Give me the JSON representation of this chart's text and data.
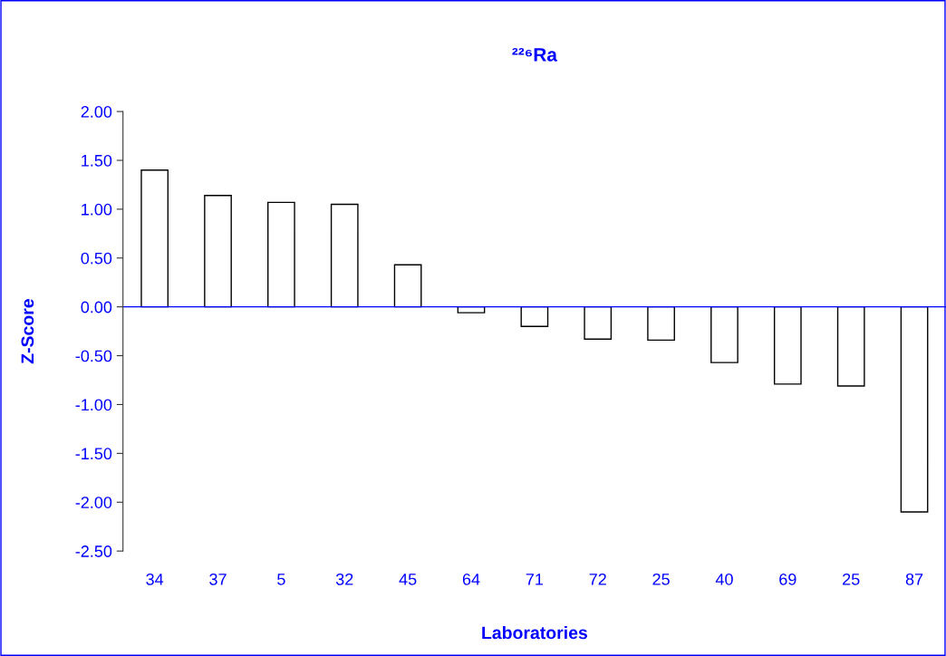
{
  "chart_data": {
    "type": "bar",
    "title": "²²⁶Ra",
    "xlabel": "Laboratories",
    "ylabel": "Z-Score",
    "categories": [
      "34",
      "37",
      "5",
      "32",
      "45",
      "64",
      "71",
      "72",
      "25",
      "40",
      "69",
      "25",
      "87"
    ],
    "values": [
      1.4,
      1.14,
      1.07,
      1.05,
      0.43,
      -0.06,
      -0.2,
      -0.33,
      -0.34,
      -0.57,
      -0.79,
      -0.81,
      -2.1
    ],
    "color": "#ffffff",
    "ylim": [
      -2.5,
      2.0
    ],
    "yticks": [
      {
        "value": -2.5,
        "label": "-2.50"
      },
      {
        "value": -2.0,
        "label": "-2.00"
      },
      {
        "value": -1.5,
        "label": "-1.50"
      },
      {
        "value": -1.0,
        "label": "-1.00"
      },
      {
        "value": -0.5,
        "label": "-0.50"
      },
      {
        "value": 0,
        "label": "0.00"
      },
      {
        "value": 0.5,
        "label": "0.50"
      },
      {
        "value": 1.0,
        "label": "1.00"
      },
      {
        "value": 1.5,
        "label": "1.50"
      },
      {
        "value": 2.0,
        "label": "2.00"
      }
    ],
    "ref_lines": [
      {
        "axis": "y",
        "value": 0,
        "label": null,
        "color": "#0000ff"
      }
    ],
    "grid": false,
    "legend": false
  }
}
